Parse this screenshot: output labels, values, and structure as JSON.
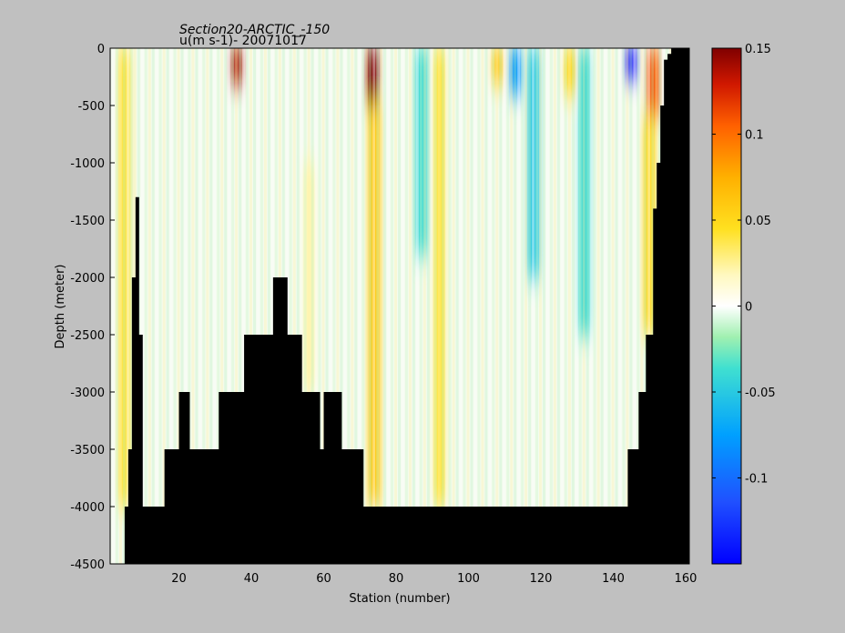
{
  "chart_data": {
    "type": "heatmap",
    "title_line1": "Section20-ARCTIC_-150",
    "title_line2": "u(m s-1)- 20071017",
    "xlabel": "Station (number)",
    "ylabel": "Depth (meter)",
    "xlim": [
      1,
      161
    ],
    "ylim": [
      -4500,
      0
    ],
    "xticks": [
      20,
      40,
      60,
      80,
      100,
      120,
      140,
      160
    ],
    "yticks": [
      0,
      -500,
      -1000,
      -1500,
      -2000,
      -2500,
      -3000,
      -3500,
      -4000,
      -4500
    ],
    "colorbar": {
      "clim": [
        -0.15,
        0.15
      ],
      "ticks": [
        0.15,
        0.1,
        0.05,
        0,
        -0.05,
        -0.1
      ],
      "tick_labels": [
        "0.15",
        "0.1",
        "0.05",
        "0",
        "-0.05",
        "-0.1"
      ],
      "colormap": "jet"
    },
    "bathymetry_depth_by_station": [
      [
        1,
        4500
      ],
      [
        5,
        4000
      ],
      [
        6,
        3500
      ],
      [
        7,
        2000
      ],
      [
        8,
        1300
      ],
      [
        9,
        2500
      ],
      [
        10,
        4000
      ],
      [
        16,
        3500
      ],
      [
        20,
        3000
      ],
      [
        23,
        3500
      ],
      [
        31,
        3000
      ],
      [
        38,
        2500
      ],
      [
        46,
        2000
      ],
      [
        50,
        2500
      ],
      [
        54,
        3000
      ],
      [
        59,
        3500
      ],
      [
        60,
        3000
      ],
      [
        65,
        3500
      ],
      [
        71,
        4000
      ],
      [
        144,
        3500
      ],
      [
        147,
        3000
      ],
      [
        149,
        2500
      ],
      [
        151,
        1400
      ],
      [
        152,
        1000
      ],
      [
        153,
        500
      ],
      [
        154,
        100
      ],
      [
        155,
        50
      ],
      [
        156,
        0
      ],
      [
        161,
        0
      ]
    ],
    "velocity_features": [
      {
        "station": 36,
        "depth_top": 0,
        "depth_bottom": 300,
        "value": 0.14
      },
      {
        "station": 73.5,
        "depth_top": 0,
        "depth_bottom": 500,
        "value": 0.15
      },
      {
        "station": 74,
        "depth_top": 500,
        "depth_bottom": 4000,
        "value": 0.06
      },
      {
        "station": 108,
        "depth_top": 0,
        "depth_bottom": 300,
        "value": 0.06
      },
      {
        "station": 92,
        "depth_top": 0,
        "depth_bottom": 4000,
        "value": 0.04
      },
      {
        "station": 87,
        "depth_top": 0,
        "depth_bottom": 1800,
        "value": -0.04
      },
      {
        "station": 113,
        "depth_top": 0,
        "depth_bottom": 400,
        "value": -0.08
      },
      {
        "station": 118,
        "depth_top": 0,
        "depth_bottom": 2000,
        "value": -0.05
      },
      {
        "station": 132,
        "depth_top": 0,
        "depth_bottom": 2500,
        "value": -0.04
      },
      {
        "station": 145,
        "depth_top": 0,
        "depth_bottom": 250,
        "value": -0.15
      },
      {
        "station": 151,
        "depth_top": 0,
        "depth_bottom": 600,
        "value": 0.11
      },
      {
        "station": 150,
        "depth_top": 600,
        "depth_bottom": 2500,
        "value": 0.05
      },
      {
        "station": 5,
        "depth_top": 0,
        "depth_bottom": 4000,
        "value": 0.04
      },
      {
        "station": 56,
        "depth_top": 1000,
        "depth_bottom": 3000,
        "value": 0.02
      },
      {
        "station": 128,
        "depth_top": 0,
        "depth_bottom": 400,
        "value": 0.05
      }
    ]
  }
}
